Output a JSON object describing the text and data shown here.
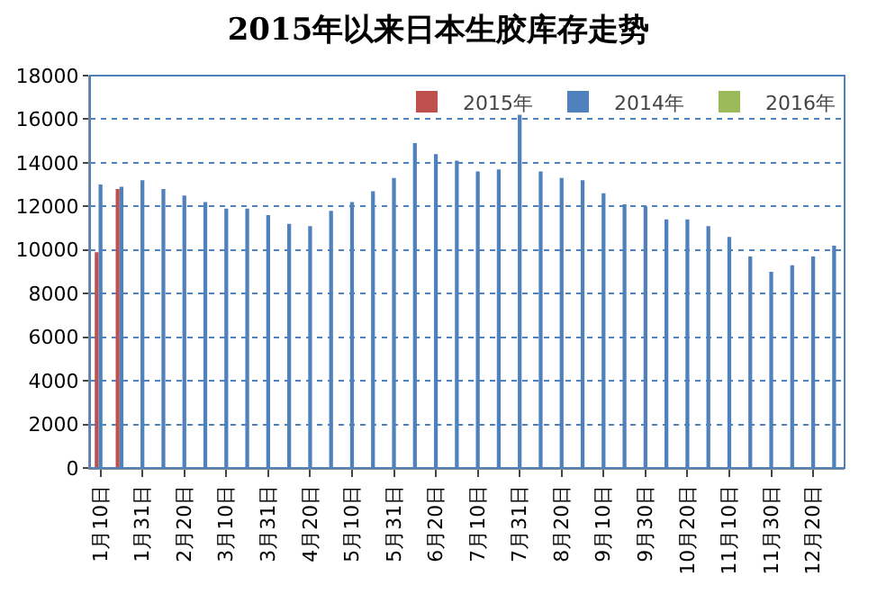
{
  "chart_data": {
    "type": "bar",
    "title": "2015年以来日本生胶库存走势",
    "categories": [
      "1月10日",
      null,
      "1月31日",
      null,
      "2月20日",
      null,
      "3月10日",
      null,
      "3月31日",
      null,
      "4月20日",
      null,
      "5月10日",
      null,
      "5月31日",
      null,
      "6月20日",
      null,
      "7月10日",
      null,
      "7月31日",
      null,
      "8月20日",
      null,
      "9月10日",
      null,
      "9月30日",
      null,
      "10月20日",
      null,
      "11月10日",
      null,
      "11月30日",
      null,
      "12月20日",
      null
    ],
    "series": [
      {
        "name": "2015年",
        "color": "#c0504d",
        "values": [
          9900,
          12800,
          null,
          null,
          null,
          null,
          null,
          null,
          null,
          null,
          null,
          null,
          null,
          null,
          null,
          null,
          null,
          null,
          null,
          null,
          null,
          null,
          null,
          null,
          null,
          null,
          null,
          null,
          null,
          null,
          null,
          null,
          null,
          null,
          null,
          null
        ]
      },
      {
        "name": "2014年",
        "color": "#4f81bd",
        "values": [
          13000,
          12900,
          13200,
          12800,
          12500,
          12200,
          11900,
          11900,
          11600,
          11200,
          11100,
          11800,
          12200,
          12700,
          13300,
          14900,
          14400,
          14100,
          13600,
          13700,
          16200,
          13600,
          13300,
          13200,
          12600,
          12100,
          12000,
          11400,
          11400,
          11100,
          10600,
          9700,
          9000,
          9300,
          9700,
          10200
        ]
      },
      {
        "name": "2016年",
        "color": "#9bbb59",
        "values": [
          null,
          null,
          null,
          null,
          null,
          null,
          null,
          null,
          null,
          null,
          null,
          null,
          null,
          null,
          null,
          null,
          null,
          null,
          null,
          null,
          null,
          null,
          null,
          null,
          null,
          null,
          null,
          null,
          null,
          null,
          null,
          null,
          null,
          null,
          null,
          null
        ]
      }
    ],
    "ylim": [
      0,
      18000
    ],
    "yticks": [
      0,
      2000,
      4000,
      6000,
      8000,
      10000,
      12000,
      14000,
      16000,
      18000
    ],
    "grid": "y",
    "legend": "top right"
  }
}
